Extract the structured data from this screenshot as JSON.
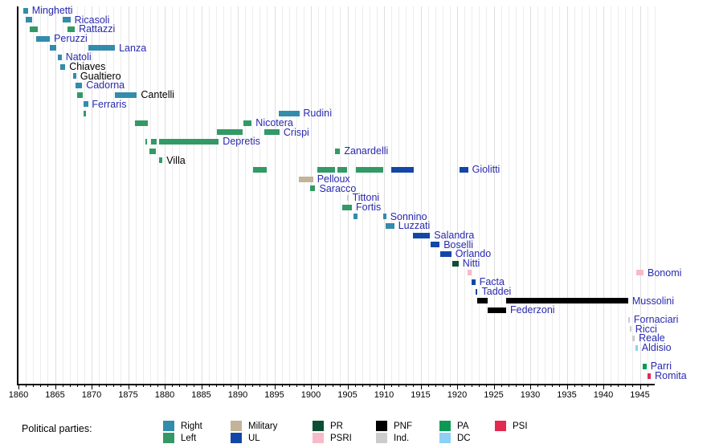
{
  "chart_data": {
    "type": "timeline",
    "title": "",
    "legend_title": "Political parties:",
    "x_axis": {
      "min": 1860,
      "max": 1945,
      "major_step": 5,
      "minor_step": 1,
      "tick_labels": [
        "1860",
        "1865",
        "1870",
        "1875",
        "1880",
        "1885",
        "1890",
        "1895",
        "1900",
        "1905",
        "1910",
        "1915",
        "1920",
        "1925",
        "1930",
        "1935",
        "1940",
        "1945"
      ]
    },
    "party_colors": {
      "right": "#338cab",
      "left": "#339966",
      "military": "#c2b399",
      "ul": "#1247a6",
      "pr": "#0d4d33",
      "psri": "#f8bac9",
      "pnf": "#000000",
      "ind": "#cccccc",
      "pa": "#0d9954",
      "dc": "#8cd1f5",
      "psi": "#e3294f"
    },
    "label_colors": {
      "link": "#2929b0",
      "plain": "#000000"
    },
    "legend_columns": [
      [
        {
          "label": "Right",
          "party": "right"
        },
        {
          "label": "Left",
          "party": "left"
        }
      ],
      [
        {
          "label": "Military",
          "party": "military"
        },
        {
          "label": "UL",
          "party": "ul"
        }
      ],
      [
        {
          "label": "PR",
          "party": "pr"
        },
        {
          "label": "PSRI",
          "party": "psri"
        }
      ],
      [
        {
          "label": "PNF",
          "party": "pnf"
        },
        {
          "label": "Ind.",
          "party": "ind"
        }
      ],
      [
        {
          "label": "PA",
          "party": "pa"
        },
        {
          "label": "DC",
          "party": "dc"
        }
      ],
      [
        {
          "label": "PSI",
          "party": "psi"
        }
      ]
    ],
    "people": [
      {
        "name": "Minghetti",
        "link": true,
        "terms": [
          {
            "start": 1860.6,
            "end": 1861.3,
            "party": "right"
          }
        ]
      },
      {
        "name": "Ricasoli",
        "link": true,
        "terms": [
          {
            "start": 1861.0,
            "end": 1861.9,
            "party": "right"
          },
          {
            "start": 1866.0,
            "end": 1867.1,
            "party": "right"
          }
        ]
      },
      {
        "name": "Rattazzi",
        "link": true,
        "terms": [
          {
            "start": 1861.5,
            "end": 1862.6,
            "party": "left"
          },
          {
            "start": 1866.7,
            "end": 1867.7,
            "party": "left"
          }
        ]
      },
      {
        "name": "Peruzzi",
        "link": true,
        "terms": [
          {
            "start": 1862.4,
            "end": 1864.3,
            "party": "right"
          }
        ]
      },
      {
        "name": "Lanza",
        "link": true,
        "terms": [
          {
            "start": 1864.3,
            "end": 1865.2,
            "party": "right"
          },
          {
            "start": 1869.6,
            "end": 1873.2,
            "party": "right"
          }
        ]
      },
      {
        "name": "Natoli",
        "link": true,
        "terms": [
          {
            "start": 1865.4,
            "end": 1865.9,
            "party": "right"
          }
        ]
      },
      {
        "name": "Chiaves",
        "link": false,
        "terms": [
          {
            "start": 1865.7,
            "end": 1866.4,
            "party": "right"
          }
        ]
      },
      {
        "name": "Gualtiero",
        "link": false,
        "terms": [
          {
            "start": 1867.5,
            "end": 1867.9,
            "party": "right"
          }
        ]
      },
      {
        "name": "Cadorna",
        "link": true,
        "terms": [
          {
            "start": 1867.8,
            "end": 1868.7,
            "party": "right"
          }
        ]
      },
      {
        "name": "Cantelli",
        "link": false,
        "terms": [
          {
            "start": 1868.0,
            "end": 1868.8,
            "party": "left"
          },
          {
            "start": 1873.2,
            "end": 1876.2,
            "party": "right"
          }
        ]
      },
      {
        "name": "Ferraris",
        "link": true,
        "terms": [
          {
            "start": 1868.9,
            "end": 1869.5,
            "party": "right"
          }
        ]
      },
      {
        "name": "Rudinì",
        "link": true,
        "terms": [
          {
            "start": 1868.9,
            "end": 1869.2,
            "party": "left"
          },
          {
            "start": 1895.6,
            "end": 1898.4,
            "party": "right"
          }
        ]
      },
      {
        "name": "Nicotera",
        "link": true,
        "terms": [
          {
            "start": 1875.9,
            "end": 1877.7,
            "party": "left"
          },
          {
            "start": 1890.8,
            "end": 1891.9,
            "party": "left"
          }
        ]
      },
      {
        "name": "Crispi",
        "link": true,
        "terms": [
          {
            "start": 1887.1,
            "end": 1890.7,
            "party": "left"
          },
          {
            "start": 1893.6,
            "end": 1895.7,
            "party": "left"
          }
        ]
      },
      {
        "name": "Depretis",
        "link": true,
        "terms": [
          {
            "start": 1877.4,
            "end": 1877.6,
            "party": "left"
          },
          {
            "start": 1878.1,
            "end": 1878.9,
            "party": "left"
          },
          {
            "start": 1879.2,
            "end": 1887.4,
            "party": "left"
          }
        ]
      },
      {
        "name": "Zanardelli",
        "link": true,
        "terms": [
          {
            "start": 1877.9,
            "end": 1878.8,
            "party": "left"
          },
          {
            "start": 1903.3,
            "end": 1904.0,
            "party": "left"
          }
        ]
      },
      {
        "name": "Villa",
        "link": false,
        "terms": [
          {
            "start": 1879.2,
            "end": 1879.7,
            "party": "left"
          }
        ]
      },
      {
        "name": "Giolitti",
        "link": true,
        "terms": [
          {
            "start": 1892.1,
            "end": 1894.0,
            "party": "left"
          },
          {
            "start": 1900.9,
            "end": 1903.3,
            "party": "left"
          },
          {
            "start": 1903.6,
            "end": 1904.9,
            "party": "left"
          },
          {
            "start": 1906.2,
            "end": 1909.9,
            "party": "left"
          },
          {
            "start": 1911.0,
            "end": 1914.1,
            "party": "ul"
          },
          {
            "start": 1920.3,
            "end": 1921.5,
            "party": "ul"
          }
        ]
      },
      {
        "name": "Pelloux",
        "link": true,
        "terms": [
          {
            "start": 1898.4,
            "end": 1900.3,
            "party": "military"
          }
        ]
      },
      {
        "name": "Saracco",
        "link": true,
        "terms": [
          {
            "start": 1899.9,
            "end": 1900.6,
            "party": "left"
          }
        ]
      },
      {
        "name": "Tittoni",
        "link": true,
        "terms": [
          {
            "start": 1904.9,
            "end": 1905.1,
            "party": "ind"
          }
        ]
      },
      {
        "name": "Fortis",
        "link": true,
        "terms": [
          {
            "start": 1904.3,
            "end": 1905.6,
            "party": "left"
          }
        ]
      },
      {
        "name": "Sonnino",
        "link": true,
        "terms": [
          {
            "start": 1905.8,
            "end": 1906.4,
            "party": "right"
          },
          {
            "start": 1909.9,
            "end": 1910.3,
            "party": "right"
          }
        ]
      },
      {
        "name": "Luzzati",
        "link": true,
        "terms": [
          {
            "start": 1910.2,
            "end": 1911.4,
            "party": "right"
          }
        ]
      },
      {
        "name": "Salandra",
        "link": true,
        "terms": [
          {
            "start": 1913.9,
            "end": 1916.3,
            "party": "ul"
          }
        ]
      },
      {
        "name": "Boselli",
        "link": true,
        "terms": [
          {
            "start": 1916.4,
            "end": 1917.6,
            "party": "ul"
          }
        ]
      },
      {
        "name": "Orlando",
        "link": true,
        "terms": [
          {
            "start": 1917.7,
            "end": 1919.2,
            "party": "ul"
          }
        ]
      },
      {
        "name": "Nitti",
        "link": true,
        "terms": [
          {
            "start": 1919.3,
            "end": 1920.2,
            "party": "pr"
          }
        ]
      },
      {
        "name": "Bonomi",
        "link": true,
        "terms": [
          {
            "start": 1921.4,
            "end": 1922.0,
            "party": "psri"
          },
          {
            "start": 1944.5,
            "end": 1945.5,
            "party": "psri"
          }
        ]
      },
      {
        "name": "Facta",
        "link": true,
        "terms": [
          {
            "start": 1922.0,
            "end": 1922.5,
            "party": "ul"
          }
        ]
      },
      {
        "name": "Taddei",
        "link": true,
        "terms": [
          {
            "start": 1922.5,
            "end": 1922.8,
            "party": "ul"
          }
        ]
      },
      {
        "name": "Mussolini",
        "link": true,
        "terms": [
          {
            "start": 1922.7,
            "end": 1924.2,
            "party": "pnf"
          },
          {
            "start": 1926.7,
            "end": 1943.4,
            "party": "pnf"
          }
        ]
      },
      {
        "name": "Federzoni",
        "link": true,
        "terms": [
          {
            "start": 1924.2,
            "end": 1926.7,
            "party": "pnf"
          }
        ]
      },
      {
        "name": "Fornaciari",
        "link": true,
        "terms": [
          {
            "start": 1943.4,
            "end": 1943.6,
            "party": "ind"
          }
        ]
      },
      {
        "name": "Ricci",
        "link": true,
        "terms": [
          {
            "start": 1943.6,
            "end": 1943.8,
            "party": "ind"
          }
        ]
      },
      {
        "name": "Reale",
        "link": true,
        "terms": [
          {
            "start": 1943.9,
            "end": 1944.3,
            "party": "ind"
          }
        ]
      },
      {
        "name": "Aldisio",
        "link": true,
        "terms": [
          {
            "start": 1944.4,
            "end": 1944.7,
            "party": "dc"
          }
        ]
      },
      {
        "name": "",
        "link": false,
        "terms": []
      },
      {
        "name": "Parri",
        "link": true,
        "terms": [
          {
            "start": 1945.4,
            "end": 1945.9,
            "party": "pa"
          }
        ]
      },
      {
        "name": "Romita",
        "link": true,
        "terms": [
          {
            "start": 1946.0,
            "end": 1946.5,
            "party": "psi"
          }
        ]
      }
    ]
  }
}
